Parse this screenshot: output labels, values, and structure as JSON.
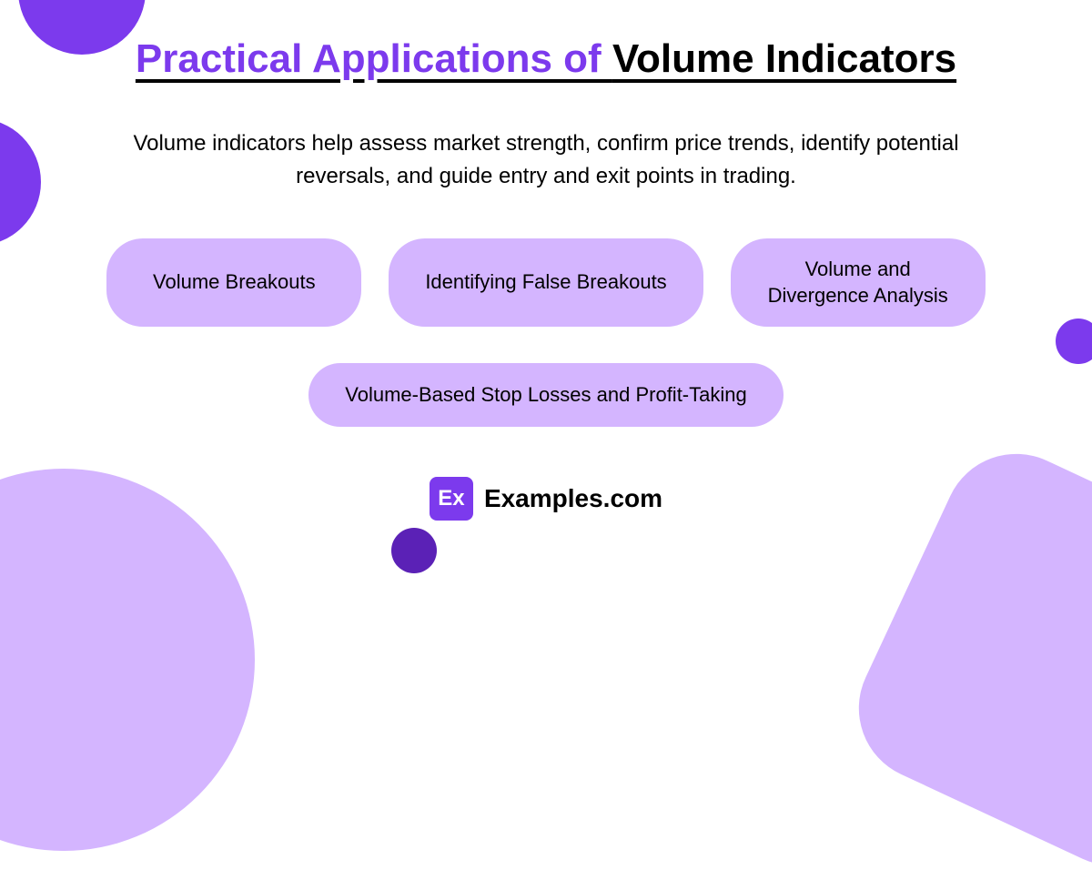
{
  "title": {
    "part1": "Practical Applications of ",
    "part2": "Volume Indicators",
    "part1_color": "#7c3aed",
    "part2_color": "#000000",
    "fontsize": 44,
    "underline_thickness": 4
  },
  "subtitle": {
    "text": "Volume indicators help assess market strength, confirm price trends, identify potential reversals, and guide entry and exit points in trading.",
    "fontsize": 24,
    "color": "#000000"
  },
  "pills": {
    "row1": [
      {
        "label": "Volume Breakouts"
      },
      {
        "label": "Identifying False Breakouts"
      },
      {
        "label": "Volume and Divergence Analysis"
      }
    ],
    "row2": [
      {
        "label": "Volume-Based Stop Losses and Profit-Taking"
      }
    ],
    "background_color": "#d4b5ff",
    "text_color": "#000000",
    "fontsize": 22,
    "border_radius": 40
  },
  "brand": {
    "logo_text": "Ex",
    "logo_bg": "#7c3aed",
    "logo_fg": "#ffffff",
    "name": "Examples.com",
    "fontsize": 28
  },
  "decorations": {
    "accent_purple": "#7c3aed",
    "light_purple": "#d4b5ff",
    "dark_purple": "#5b21b6",
    "background": "#ffffff"
  }
}
